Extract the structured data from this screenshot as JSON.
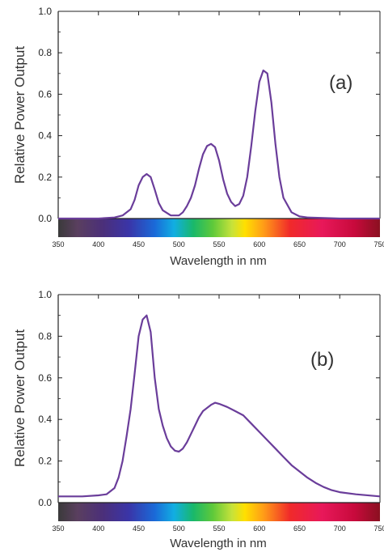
{
  "chart_data": [
    {
      "type": "line",
      "panel_label": "(a)",
      "xlabel": "Wavelength in nm",
      "ylabel": "Relative Power Output",
      "xlim": [
        350,
        750
      ],
      "ylim": [
        0,
        1.0
      ],
      "x_ticks": [
        "350",
        "400",
        "450",
        "500",
        "550",
        "600",
        "650",
        "700",
        "750"
      ],
      "y_ticks": [
        "0.0",
        "0.2",
        "0.4",
        "0.6",
        "0.8",
        "1.0"
      ],
      "line_color": "#6a3d9a",
      "spectrum_bar": true,
      "grid": false,
      "series": [
        {
          "x": [
            350,
            400,
            420,
            430,
            440,
            445,
            450,
            455,
            460,
            465,
            470,
            475,
            480,
            490,
            500,
            505,
            510,
            515,
            520,
            525,
            530,
            535,
            540,
            545,
            550,
            555,
            560,
            565,
            570,
            575,
            580,
            585,
            590,
            595,
            600,
            605,
            610,
            615,
            620,
            625,
            630,
            640,
            650,
            660,
            700,
            750
          ],
          "y": [
            0,
            0,
            0.005,
            0.015,
            0.045,
            0.09,
            0.16,
            0.2,
            0.215,
            0.2,
            0.14,
            0.075,
            0.04,
            0.015,
            0.015,
            0.03,
            0.06,
            0.1,
            0.16,
            0.24,
            0.31,
            0.35,
            0.36,
            0.345,
            0.28,
            0.19,
            0.12,
            0.08,
            0.06,
            0.07,
            0.11,
            0.2,
            0.35,
            0.52,
            0.66,
            0.715,
            0.7,
            0.56,
            0.36,
            0.2,
            0.1,
            0.03,
            0.01,
            0.005,
            0,
            0
          ]
        }
      ]
    },
    {
      "type": "line",
      "panel_label": "(b)",
      "xlabel": "Wavelength in nm",
      "ylabel": "Relative Power Output",
      "xlim": [
        350,
        750
      ],
      "ylim": [
        0,
        1.0
      ],
      "x_ticks": [
        "350",
        "400",
        "450",
        "500",
        "550",
        "600",
        "650",
        "700",
        "750"
      ],
      "y_ticks": [
        "0.0",
        "0.2",
        "0.4",
        "0.6",
        "0.8",
        "1.0"
      ],
      "line_color": "#6a3d9a",
      "spectrum_bar": true,
      "grid": false,
      "series": [
        {
          "x": [
            350,
            380,
            400,
            410,
            420,
            425,
            430,
            435,
            440,
            445,
            450,
            455,
            460,
            465,
            470,
            475,
            480,
            485,
            490,
            495,
            500,
            505,
            510,
            515,
            520,
            525,
            530,
            540,
            545,
            550,
            560,
            570,
            580,
            590,
            600,
            610,
            620,
            630,
            640,
            650,
            660,
            670,
            680,
            690,
            700,
            720,
            750
          ],
          "y": [
            0.03,
            0.03,
            0.035,
            0.04,
            0.07,
            0.12,
            0.2,
            0.32,
            0.45,
            0.62,
            0.8,
            0.88,
            0.9,
            0.82,
            0.6,
            0.45,
            0.37,
            0.31,
            0.27,
            0.25,
            0.245,
            0.26,
            0.29,
            0.33,
            0.37,
            0.41,
            0.44,
            0.47,
            0.48,
            0.475,
            0.46,
            0.44,
            0.42,
            0.38,
            0.34,
            0.3,
            0.26,
            0.22,
            0.18,
            0.15,
            0.12,
            0.095,
            0.075,
            0.06,
            0.05,
            0.04,
            0.03
          ]
        }
      ]
    }
  ]
}
